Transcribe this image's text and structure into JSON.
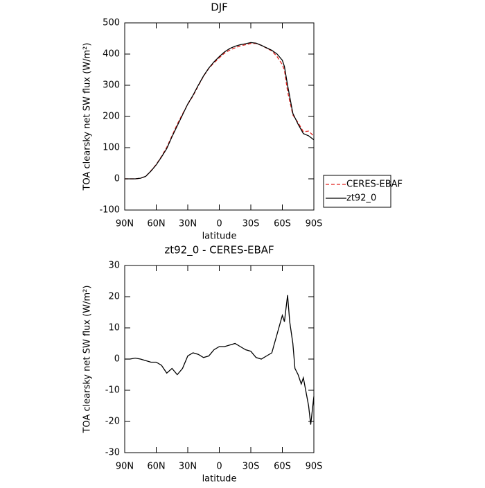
{
  "chart_data": [
    {
      "type": "line",
      "title": "DJF",
      "x_label": "latitude",
      "y_label": "TOA clearsky net SW flux (W/m²)",
      "x": [
        90,
        85,
        80,
        75,
        70,
        65,
        60,
        55,
        50,
        45,
        40,
        35,
        30,
        25,
        20,
        15,
        10,
        5,
        0,
        -5,
        -10,
        -15,
        -20,
        -25,
        -30,
        -35,
        -40,
        -45,
        -50,
        -55,
        -60,
        -62,
        -65,
        -70,
        -75,
        -80,
        -85,
        -90
      ],
      "series": [
        {
          "name": "CERES-EBAF",
          "color": "#e0201c",
          "dashed": true,
          "values": [
            0,
            0,
            0,
            2,
            8,
            26,
            46,
            72,
            101,
            138,
            175,
            208,
            239,
            266,
            298,
            329,
            354,
            372,
            388,
            403,
            413,
            420,
            426,
            430,
            434,
            434,
            428,
            419,
            410,
            392,
            366,
            348,
            280,
            205,
            180,
            151,
            153,
            137
          ]
        },
        {
          "name": "zt92_0",
          "color": "#000000",
          "dashed": false,
          "values": [
            0,
            0,
            0,
            2,
            8,
            25,
            45,
            70,
            97,
            135,
            170,
            205,
            240,
            268,
            300,
            330,
            355,
            375,
            392,
            407,
            418,
            425,
            430,
            433,
            437,
            435,
            428,
            420,
            412,
            400,
            380,
            360,
            300,
            210,
            175,
            145,
            138,
            125
          ]
        }
      ],
      "xlim": [
        90,
        -90
      ],
      "xticks": [
        {
          "value": 90,
          "label": "90N"
        },
        {
          "value": 60,
          "label": "60N"
        },
        {
          "value": 30,
          "label": "30N"
        },
        0,
        {
          "value": -30,
          "label": "30S"
        },
        {
          "value": -60,
          "label": "60S"
        },
        {
          "value": -90,
          "label": "90S"
        }
      ],
      "ylim": [
        -100,
        500
      ],
      "yticks": [
        -100,
        0,
        100,
        200,
        300,
        400,
        500
      ],
      "legend": "right"
    },
    {
      "type": "line",
      "title": "zt92_0 - CERES-EBAF",
      "x_label": "latitude",
      "y_label": "TOA clearsky net SW flux (W/m²)",
      "x": [
        90,
        85,
        80,
        75,
        70,
        65,
        60,
        55,
        50,
        45,
        40,
        35,
        30,
        25,
        20,
        15,
        10,
        5,
        0,
        -5,
        -10,
        -15,
        -20,
        -25,
        -30,
        -35,
        -40,
        -45,
        -50,
        -55,
        -60,
        -62,
        -65,
        -67,
        -70,
        -72,
        -75,
        -78,
        -80,
        -85,
        -87,
        -90
      ],
      "values": [
        0,
        0,
        0.3,
        0,
        -0.5,
        -1,
        -1,
        -2,
        -4.5,
        -3,
        -5,
        -3,
        1,
        2,
        1.5,
        0.5,
        1,
        3,
        4,
        4,
        4.5,
        5,
        4,
        3,
        2.5,
        0.5,
        0,
        1,
        2,
        8,
        14,
        12,
        20.5,
        12,
        5,
        -3,
        -5,
        -8,
        -6,
        -15,
        -21,
        -12
      ],
      "color": "#000000",
      "xlim": [
        90,
        -90
      ],
      "xticks": [
        {
          "value": 90,
          "label": "90N"
        },
        {
          "value": 60,
          "label": "60N"
        },
        {
          "value": 30,
          "label": "30N"
        },
        0,
        {
          "value": -30,
          "label": "30S"
        },
        {
          "value": -60,
          "label": "60S"
        },
        {
          "value": -90,
          "label": "90S"
        }
      ],
      "ylim": [
        -30,
        30
      ],
      "yticks": [
        -30,
        -20,
        -10,
        0,
        10,
        20,
        30
      ]
    }
  ]
}
